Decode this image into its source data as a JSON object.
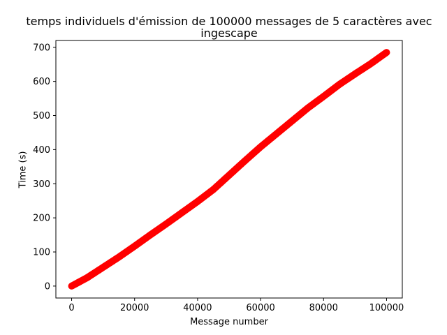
{
  "chart_data": {
    "type": "scatter",
    "title_lines": [
      "temps individuels d'émission de 100000 messages de 5 caractères avec",
      "ingescape"
    ],
    "xlabel": "Message number",
    "ylabel": "Time (s)",
    "xlim": [
      -5000,
      105000
    ],
    "ylim": [
      -35,
      720
    ],
    "xticks": [
      0,
      20000,
      40000,
      60000,
      80000,
      100000
    ],
    "xtick_labels": [
      "0",
      "20000",
      "40000",
      "60000",
      "80000",
      "100000"
    ],
    "yticks": [
      0,
      100,
      200,
      300,
      400,
      500,
      600,
      700
    ],
    "ytick_labels": [
      "0",
      "100",
      "200",
      "300",
      "400",
      "500",
      "600",
      "700"
    ],
    "grid": false,
    "marker_color": "#ff0000",
    "series": [
      {
        "x": [
          0,
          5000,
          10000,
          15000,
          20000,
          25000,
          30000,
          35000,
          40000,
          45000,
          50000,
          55000,
          60000,
          65000,
          70000,
          75000,
          80000,
          85000,
          90000,
          95000,
          100000
        ],
        "y": [
          0,
          25,
          55,
          85,
          117,
          150,
          182,
          215,
          248,
          283,
          325,
          367,
          408,
          446,
          484,
          522,
          556,
          591,
          622,
          652,
          685
        ]
      }
    ]
  }
}
